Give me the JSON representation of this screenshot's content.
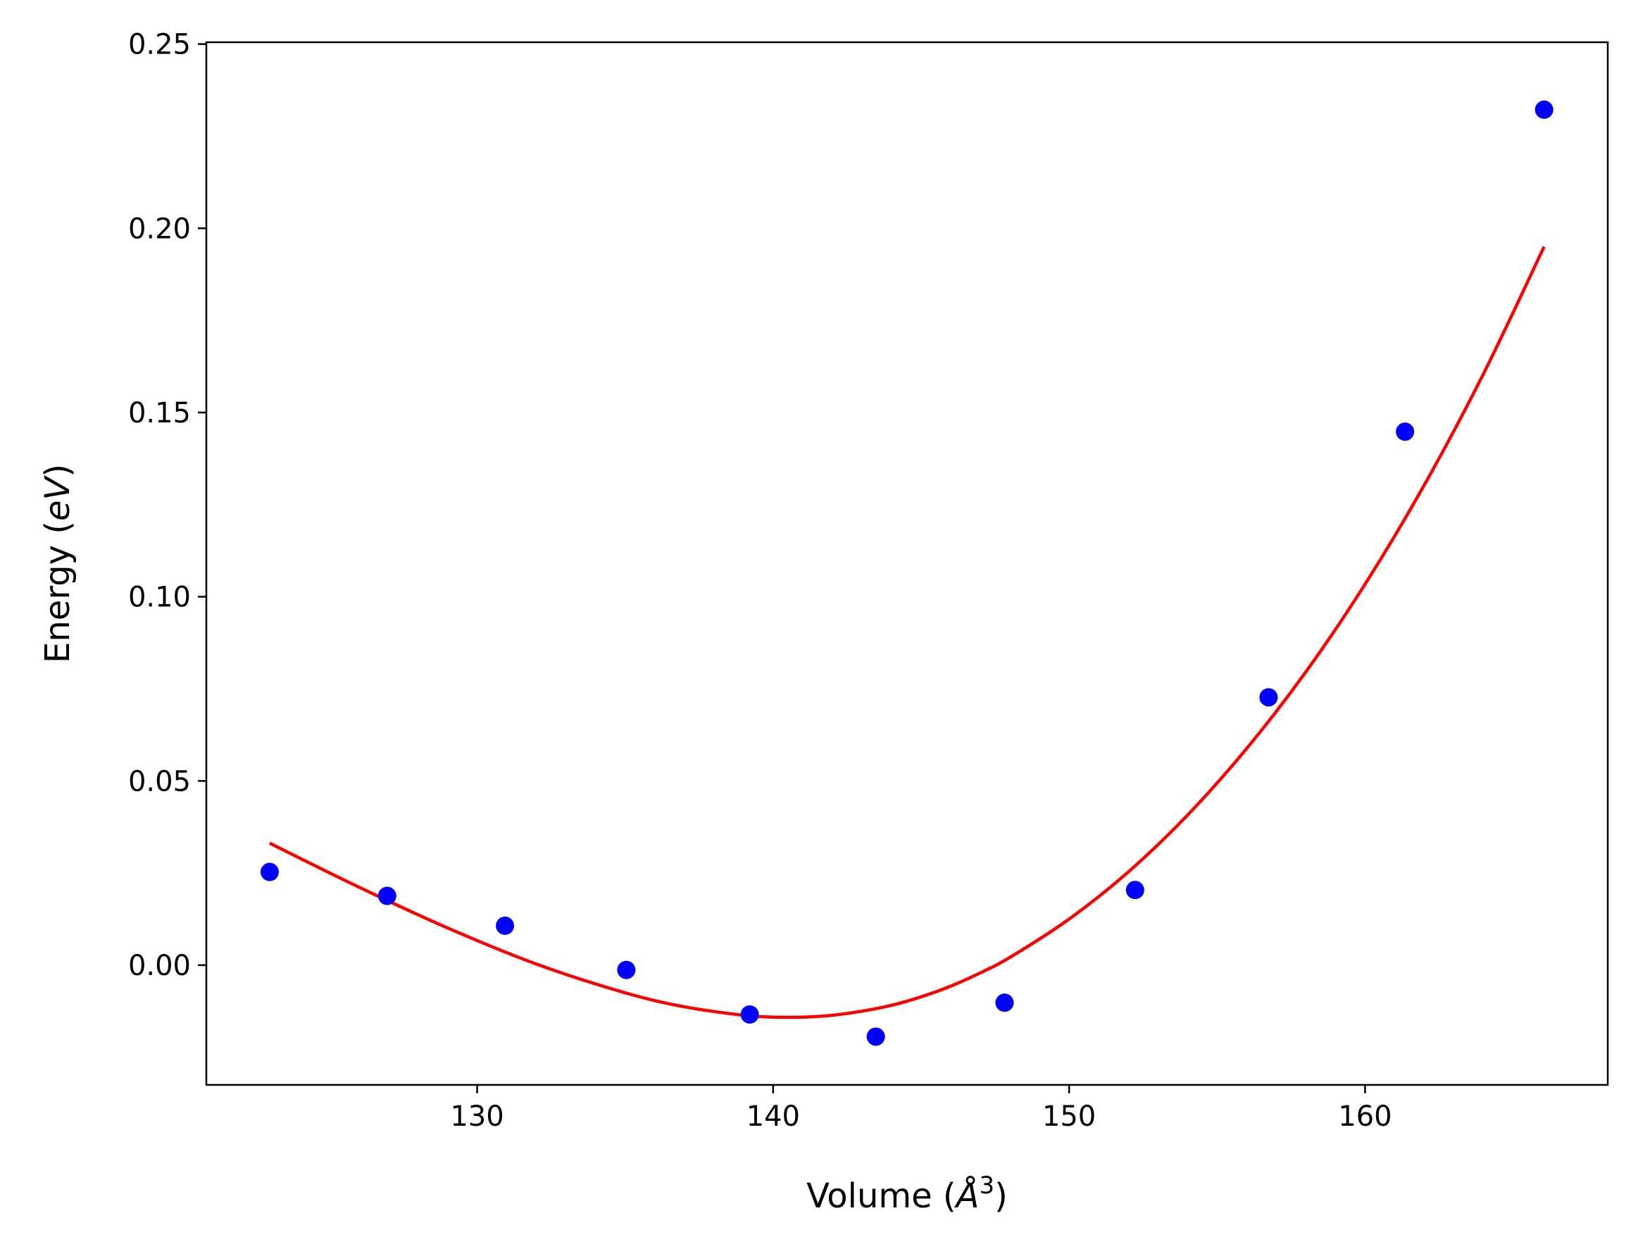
{
  "chart_data": {
    "type": "scatter",
    "title": "",
    "xlabel": {
      "prefix": "Volume (",
      "symbol": "Å",
      "superscript": "3",
      "suffix": ")"
    },
    "ylabel": {
      "prefix": "Energy (",
      "symbol": "eV",
      "suffix": ")"
    },
    "xlim": [
      120.85,
      168.2
    ],
    "ylim": [
      -0.0325,
      0.2505
    ],
    "xticks": [
      130,
      140,
      150,
      160
    ],
    "xtick_labels": [
      "130",
      "140",
      "150",
      "160"
    ],
    "yticks": [
      0.0,
      0.05,
      0.1,
      0.15,
      0.2,
      0.25
    ],
    "ytick_labels": [
      "0.00",
      "0.05",
      "0.10",
      "0.15",
      "0.20",
      "0.25"
    ],
    "grid": false,
    "series": [
      {
        "type": "scatter",
        "color": "#0000ff",
        "points": [
          {
            "x": 122.99,
            "y": 0.0253
          },
          {
            "x": 126.96,
            "y": 0.0188
          },
          {
            "x": 130.94,
            "y": 0.0107
          },
          {
            "x": 135.04,
            "y": -0.0013
          },
          {
            "x": 139.21,
            "y": -0.0134
          },
          {
            "x": 143.47,
            "y": -0.0194
          },
          {
            "x": 147.82,
            "y": -0.0102
          },
          {
            "x": 152.23,
            "y": 0.0204
          },
          {
            "x": 156.74,
            "y": 0.0727
          },
          {
            "x": 161.35,
            "y": 0.1448
          },
          {
            "x": 166.05,
            "y": 0.2322
          }
        ]
      },
      {
        "type": "line",
        "color": "#ff0000",
        "x": [
          122.99,
          126.0,
          129.0,
          132.0,
          135.0,
          137.0,
          139.0,
          140.0,
          141.0,
          142.0,
          143.0,
          144.0,
          145.0,
          146.0,
          147.0,
          148.0,
          150.0,
          152.0,
          154.0,
          156.0,
          158.0,
          160.0,
          162.0,
          164.0,
          166.05
        ],
        "y": [
          0.0331,
          0.0212,
          0.0101,
          0.0003,
          -0.0075,
          -0.0113,
          -0.0136,
          -0.0141,
          -0.0141,
          -0.0136,
          -0.0125,
          -0.0109,
          -0.0086,
          -0.0057,
          -0.0021,
          0.0021,
          0.0125,
          0.0253,
          0.0407,
          0.0588,
          0.0796,
          0.1034,
          0.1303,
          0.1605,
          0.195
        ]
      }
    ]
  }
}
